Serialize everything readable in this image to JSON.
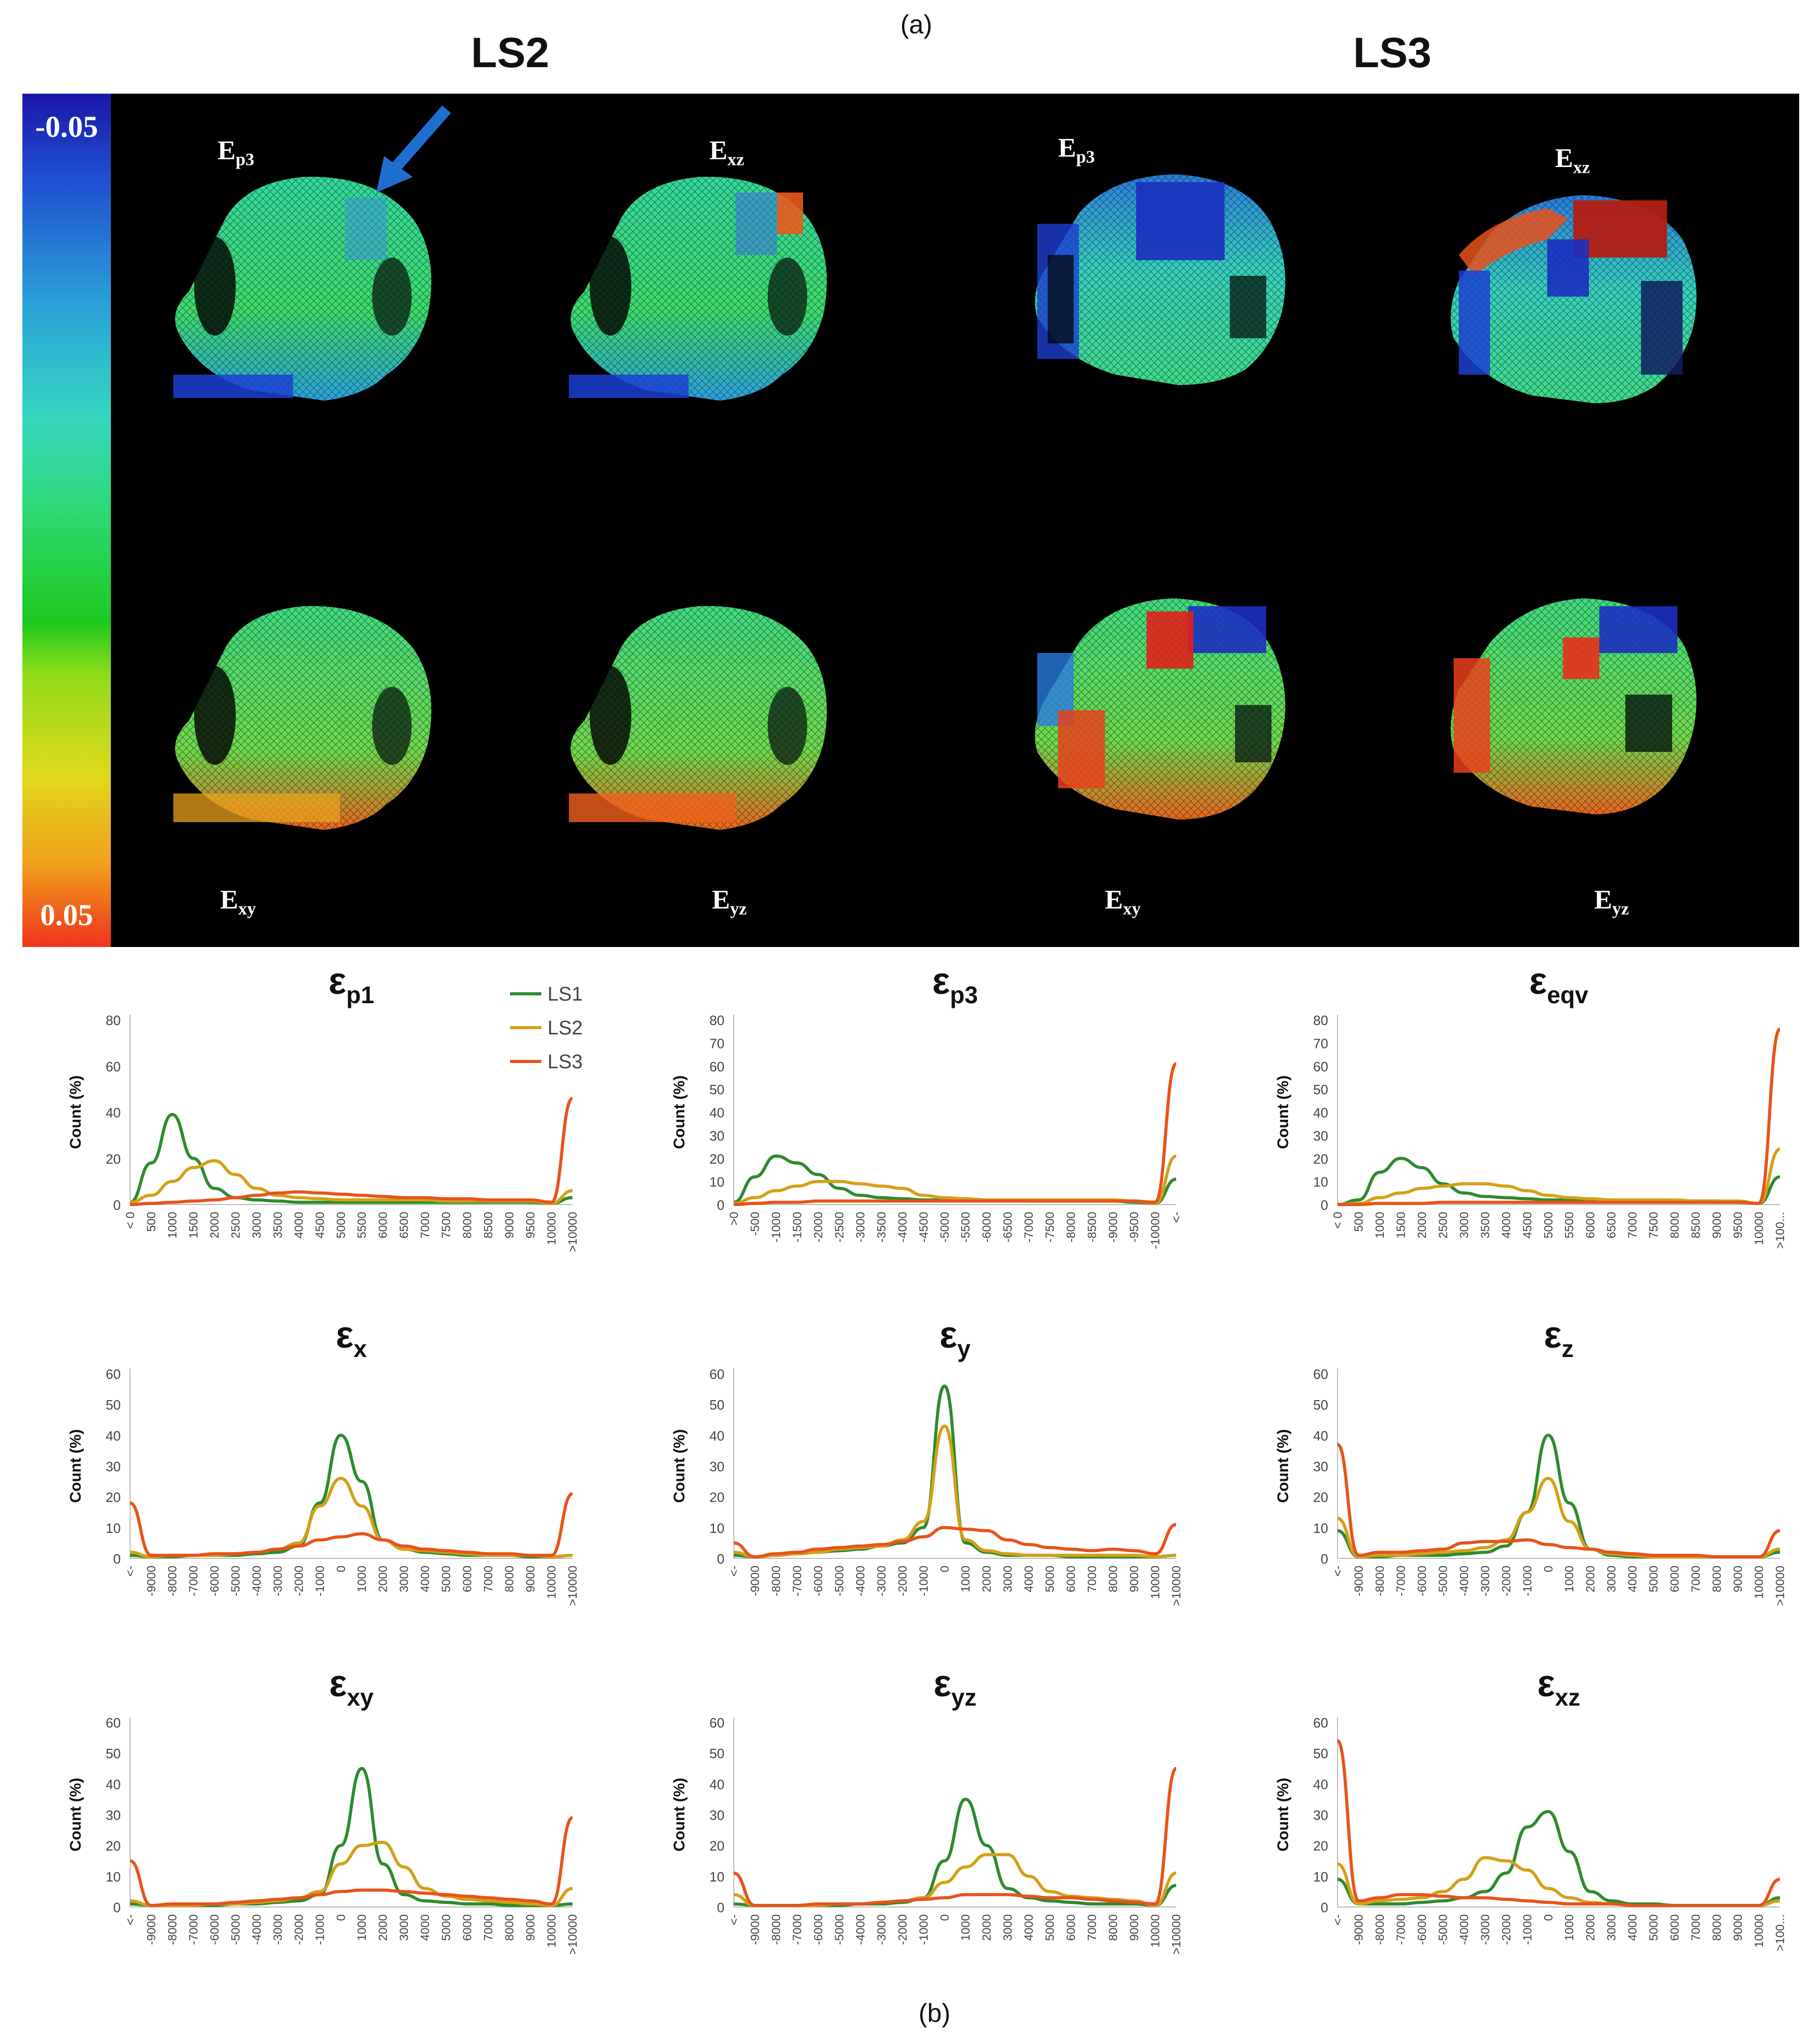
{
  "panel_a_label": "(a)",
  "panel_b_label": "(b)",
  "column_headers": [
    "LS2",
    "LS3"
  ],
  "colorbar": {
    "top_label": "-0.05",
    "bottom_label": "0.05"
  },
  "strain_labels": {
    "top": [
      {
        "main": "E",
        "sub": "p3"
      },
      {
        "main": "E",
        "sub": "xz"
      },
      {
        "main": "E",
        "sub": "p3"
      },
      {
        "main": "E",
        "sub": "xz"
      }
    ],
    "bottom": [
      {
        "main": "E",
        "sub": "xy"
      },
      {
        "main": "E",
        "sub": "yz"
      },
      {
        "main": "E",
        "sub": "xy"
      },
      {
        "main": "E",
        "sub": "yz"
      }
    ]
  },
  "colors": {
    "LS1": "#2e8b2e",
    "LS2": "#d4a017",
    "LS3": "#e8531a",
    "arrow": "#1f6fd0"
  },
  "legend": [
    "LS1",
    "LS2",
    "LS3"
  ],
  "chart_data": [
    {
      "type": "line",
      "title_main": "ε",
      "title_sub": "p1",
      "ylabel": "Count (%)",
      "ylim": [
        0,
        80
      ],
      "yticks": [
        0,
        20,
        40,
        60,
        80
      ],
      "categories": [
        "< 0",
        "500",
        "1000",
        "1500",
        "2000",
        "2500",
        "3000",
        "3500",
        "4000",
        "4500",
        "5000",
        "5500",
        "6000",
        "6500",
        "7000",
        "7500",
        "8000",
        "8500",
        "9000",
        "9500",
        "10000",
        ">10000"
      ],
      "series": [
        {
          "name": "LS1",
          "values": [
            1,
            18,
            39,
            20,
            7,
            3,
            2,
            1.5,
            1,
            1,
            1,
            1,
            1,
            1,
            1,
            1,
            1,
            1,
            1,
            1,
            0.5,
            3
          ]
        },
        {
          "name": "LS2",
          "values": [
            1,
            4,
            10,
            16,
            19,
            13,
            7,
            4,
            3,
            2.5,
            2,
            2,
            2,
            2,
            2,
            1.5,
            1.5,
            1.5,
            1.5,
            1.5,
            0.5,
            6
          ]
        },
        {
          "name": "LS3",
          "values": [
            0,
            0.5,
            1,
            1.5,
            2,
            3,
            4,
            5,
            5.5,
            5,
            4.5,
            4,
            3.5,
            3,
            3,
            2.5,
            2.5,
            2,
            2,
            2,
            1,
            46
          ]
        }
      ]
    },
    {
      "type": "line",
      "title_main": "ε",
      "title_sub": "p3",
      "ylabel": "Count (%)",
      "ylim": [
        0,
        80
      ],
      "yticks": [
        0,
        10,
        20,
        30,
        40,
        50,
        60,
        70,
        80
      ],
      "categories": [
        ">0",
        "-500",
        "-1000",
        "-1500",
        "-2000",
        "-2500",
        "-3000",
        "-3500",
        "-4000",
        "-4500",
        "-5000",
        "-5500",
        "-6000",
        "-6500",
        "-7000",
        "-7500",
        "-8000",
        "-8500",
        "-9000",
        "-9500",
        "-10000",
        "<-"
      ],
      "series": [
        {
          "name": "LS1",
          "values": [
            1,
            12,
            21,
            18,
            13,
            7,
            4,
            3,
            2.5,
            2,
            2,
            2,
            2,
            2,
            1.5,
            1.5,
            1.5,
            1.5,
            1.5,
            1,
            0.5,
            11
          ]
        },
        {
          "name": "LS2",
          "values": [
            0.5,
            3,
            6,
            8,
            10,
            10,
            9,
            8,
            7,
            4,
            3,
            2.5,
            2,
            2,
            2,
            2,
            2,
            2,
            2,
            1.5,
            0.5,
            21
          ]
        },
        {
          "name": "LS3",
          "values": [
            0,
            0.5,
            1,
            1,
            1.5,
            1.5,
            1.5,
            1.5,
            1.5,
            1.5,
            1.5,
            1.5,
            1.5,
            1.5,
            1.5,
            1.5,
            1.5,
            1.5,
            1.5,
            1.5,
            1,
            61
          ]
        }
      ]
    },
    {
      "type": "line",
      "title_main": "ε",
      "title_sub": "eqv",
      "ylabel": "Count (%)",
      "ylim": [
        0,
        80
      ],
      "yticks": [
        0,
        10,
        20,
        30,
        40,
        50,
        60,
        70,
        80
      ],
      "categories": [
        "< 0",
        "500",
        "1000",
        "1500",
        "2000",
        "2500",
        "3000",
        "3500",
        "4000",
        "4500",
        "5000",
        "5500",
        "6000",
        "6500",
        "7000",
        "7500",
        "8000",
        "8500",
        "9000",
        "9500",
        "10000",
        ">100..."
      ],
      "series": [
        {
          "name": "LS1",
          "values": [
            0,
            2,
            14,
            20,
            16,
            9,
            5,
            3.5,
            3,
            2.5,
            2,
            2,
            2,
            1.5,
            1.5,
            1.5,
            1.5,
            1.5,
            1.5,
            1,
            0.5,
            12
          ]
        },
        {
          "name": "LS2",
          "values": [
            0,
            0.5,
            3,
            5,
            7,
            8,
            9,
            9,
            8,
            6,
            4,
            3,
            2.5,
            2,
            2,
            2,
            2,
            1.5,
            1.5,
            1.5,
            0.5,
            24
          ]
        },
        {
          "name": "LS3",
          "values": [
            0,
            0,
            0.5,
            0.5,
            0.5,
            1,
            1,
            1,
            1,
            1,
            1,
            1,
            1,
            1,
            1,
            1,
            1,
            1,
            1,
            1,
            0.5,
            76
          ]
        }
      ]
    },
    {
      "type": "line",
      "title_main": "ε",
      "title_sub": "x",
      "ylabel": "Count (%)",
      "ylim": [
        0,
        60
      ],
      "yticks": [
        0,
        10,
        20,
        30,
        40,
        50,
        60
      ],
      "categories": [
        "<-",
        "-9000",
        "-8000",
        "-7000",
        "-6000",
        "-5000",
        "-4000",
        "-3000",
        "-2000",
        "-1000",
        "0",
        "1000",
        "2000",
        "3000",
        "4000",
        "5000",
        "6000",
        "7000",
        "8000",
        "9000",
        "10000",
        ">10000"
      ],
      "series": [
        {
          "name": "LS1",
          "values": [
            1,
            0.5,
            0.5,
            1,
            1,
            1,
            1.5,
            2,
            4,
            18,
            40,
            25,
            6,
            3,
            2,
            1.5,
            1,
            1,
            1,
            0.5,
            0.5,
            1
          ]
        },
        {
          "name": "LS2",
          "values": [
            2,
            0.5,
            1,
            1,
            1,
            1.5,
            2,
            3,
            5,
            17,
            26,
            17,
            6,
            3,
            2.5,
            2,
            1.5,
            1,
            1,
            1,
            0.5,
            1
          ]
        },
        {
          "name": "LS3",
          "values": [
            18,
            1,
            1,
            1,
            1.5,
            1.5,
            2,
            3,
            4,
            6,
            7,
            8,
            6,
            4,
            3,
            2.5,
            2,
            1.5,
            1.5,
            1,
            1,
            21
          ]
        }
      ]
    },
    {
      "type": "line",
      "title_main": "ε",
      "title_sub": "y",
      "ylabel": "Count (%)",
      "ylim": [
        0,
        60
      ],
      "yticks": [
        0,
        10,
        20,
        30,
        40,
        50,
        60
      ],
      "categories": [
        "<-",
        "-9000",
        "-8000",
        "-7000",
        "-6000",
        "-5000",
        "-4000",
        "-3000",
        "-2000",
        "-1000",
        "0",
        "1000",
        "2000",
        "3000",
        "4000",
        "5000",
        "6000",
        "7000",
        "8000",
        "9000",
        "10000",
        ">10000"
      ],
      "series": [
        {
          "name": "LS1",
          "values": [
            1,
            0.5,
            1,
            1.5,
            2,
            2.5,
            3,
            4,
            5,
            10,
            56,
            5,
            2,
            1,
            1,
            1,
            0.5,
            0.5,
            0.5,
            0.5,
            0.5,
            1
          ]
        },
        {
          "name": "LS2",
          "values": [
            2,
            0.5,
            1,
            1.5,
            2,
            3,
            3.5,
            4,
            6,
            12,
            43,
            6,
            2.5,
            1.5,
            1,
            1,
            1,
            1,
            1,
            1,
            0.5,
            1
          ]
        },
        {
          "name": "LS3",
          "values": [
            5,
            0.5,
            1.5,
            2,
            3,
            3.5,
            4,
            4.5,
            5.5,
            7,
            10,
            9.5,
            9,
            6,
            4.5,
            3.5,
            3,
            2.5,
            3,
            2.5,
            1.5,
            11
          ]
        }
      ]
    },
    {
      "type": "line",
      "title_main": "ε",
      "title_sub": "z",
      "ylabel": "Count (%)",
      "ylim": [
        0,
        60
      ],
      "yticks": [
        0,
        10,
        20,
        30,
        40,
        50,
        60
      ],
      "categories": [
        "<-",
        "-9000",
        "-8000",
        "-7000",
        "-6000",
        "-5000",
        "-4000",
        "-3000",
        "-2000",
        "-1000",
        "0",
        "1000",
        "2000",
        "3000",
        "4000",
        "5000",
        "6000",
        "7000",
        "8000",
        "9000",
        "10000",
        ">10000"
      ],
      "series": [
        {
          "name": "LS1",
          "values": [
            9,
            0.5,
            0.5,
            1,
            1,
            1,
            1.5,
            2,
            4,
            15,
            40,
            18,
            3,
            1,
            0.5,
            0.5,
            0.5,
            0.5,
            0.5,
            0.5,
            0.5,
            2
          ]
        },
        {
          "name": "LS2",
          "values": [
            13,
            0.5,
            1,
            1,
            1.5,
            2,
            2.5,
            3.5,
            6,
            15,
            26,
            12,
            3,
            1.5,
            1,
            0.5,
            0.5,
            0.5,
            0.5,
            0.5,
            0.5,
            3
          ]
        },
        {
          "name": "LS3",
          "values": [
            37,
            1,
            2,
            2,
            2.5,
            3,
            5,
            5.5,
            5.5,
            6,
            4.5,
            3.5,
            3,
            2,
            1.5,
            1,
            1,
            1,
            0.5,
            0.5,
            0.5,
            9
          ]
        }
      ]
    },
    {
      "type": "line",
      "title_main": "ε",
      "title_sub": "xy",
      "ylabel": "Count (%)",
      "ylim": [
        0,
        60
      ],
      "yticks": [
        0,
        10,
        20,
        30,
        40,
        50,
        60
      ],
      "categories": [
        "<-",
        "-9000",
        "-8000",
        "-7000",
        "-6000",
        "-5000",
        "-4000",
        "-3000",
        "-2000",
        "-1000",
        "0",
        "1000",
        "2000",
        "3000",
        "4000",
        "5000",
        "6000",
        "7000",
        "8000",
        "9000",
        "10000",
        ">10000"
      ],
      "series": [
        {
          "name": "LS1",
          "values": [
            1,
            0.5,
            0.5,
            0.5,
            0.5,
            1,
            1,
            1.5,
            2,
            4,
            20,
            45,
            14,
            4,
            2,
            1.5,
            1,
            1,
            0.5,
            0.5,
            0.5,
            1
          ]
        },
        {
          "name": "LS2",
          "values": [
            2,
            0.5,
            0.5,
            0.5,
            1,
            1,
            1.5,
            2,
            3,
            5,
            14,
            20,
            21,
            13,
            6,
            3.5,
            2.5,
            2,
            1.5,
            1,
            0.5,
            6
          ]
        },
        {
          "name": "LS3",
          "values": [
            15,
            0.5,
            1,
            1,
            1,
            1.5,
            2,
            2.5,
            3,
            4,
            5,
            5.5,
            5.5,
            5,
            4.5,
            4,
            3.5,
            3,
            2.5,
            2,
            1,
            29
          ]
        }
      ]
    },
    {
      "type": "line",
      "title_main": "ε",
      "title_sub": "yz",
      "ylabel": "Count (%)",
      "ylim": [
        0,
        60
      ],
      "yticks": [
        0,
        10,
        20,
        30,
        40,
        50,
        60
      ],
      "categories": [
        "<-",
        "-9000",
        "-8000",
        "-7000",
        "-6000",
        "-5000",
        "-4000",
        "-3000",
        "-2000",
        "-1000",
        "0",
        "1000",
        "2000",
        "3000",
        "4000",
        "5000",
        "6000",
        "7000",
        "8000",
        "9000",
        "10000",
        ">10000"
      ],
      "series": [
        {
          "name": "LS1",
          "values": [
            1,
            0.5,
            0.5,
            0.5,
            0.5,
            0.5,
            1,
            1,
            1.5,
            3,
            15,
            35,
            20,
            6,
            3,
            2,
            1.5,
            1,
            1,
            1,
            0.5,
            7
          ]
        },
        {
          "name": "LS2",
          "values": [
            4,
            0.5,
            0.5,
            0.5,
            0.5,
            1,
            1,
            1.5,
            2,
            3,
            8,
            13,
            17,
            17,
            10,
            5,
            3.5,
            3,
            2.5,
            2,
            0.5,
            11
          ]
        },
        {
          "name": "LS3",
          "values": [
            11,
            0.5,
            0.5,
            0.5,
            1,
            1,
            1,
            1.5,
            2,
            2.5,
            3,
            4,
            4,
            4,
            3.5,
            3,
            3,
            2.5,
            2,
            1.5,
            1,
            45
          ]
        }
      ]
    },
    {
      "type": "line",
      "title_main": "ε",
      "title_sub": "xz",
      "ylabel": "Count (%)",
      "ylim": [
        0,
        60
      ],
      "yticks": [
        0,
        10,
        20,
        30,
        40,
        50,
        60
      ],
      "categories": [
        "<-",
        "-9000",
        "-8000",
        "-7000",
        "-6000",
        "-5000",
        "-4000",
        "-3000",
        "-2000",
        "-1000",
        "0",
        "1000",
        "2000",
        "3000",
        "4000",
        "5000",
        "6000",
        "7000",
        "8000",
        "9000",
        "10000",
        ">100..."
      ],
      "series": [
        {
          "name": "LS1",
          "values": [
            9,
            1,
            1,
            1,
            1.5,
            2,
            3,
            5,
            11,
            26,
            31,
            18,
            5,
            2,
            1,
            1,
            0.5,
            0.5,
            0.5,
            0.5,
            0.5,
            3
          ]
        },
        {
          "name": "LS2",
          "values": [
            14,
            1,
            2,
            2.5,
            3,
            5,
            9,
            16,
            15,
            12,
            6,
            3,
            1.5,
            1,
            0.5,
            0.5,
            0.5,
            0.5,
            0.5,
            0.5,
            0.5,
            2
          ]
        },
        {
          "name": "LS3",
          "values": [
            54,
            2,
            3,
            4,
            4,
            3.5,
            3,
            3,
            2.5,
            2,
            1.5,
            1,
            1,
            1,
            0.5,
            0.5,
            0.5,
            0.5,
            0.5,
            0.5,
            0.5,
            9
          ]
        }
      ]
    }
  ]
}
